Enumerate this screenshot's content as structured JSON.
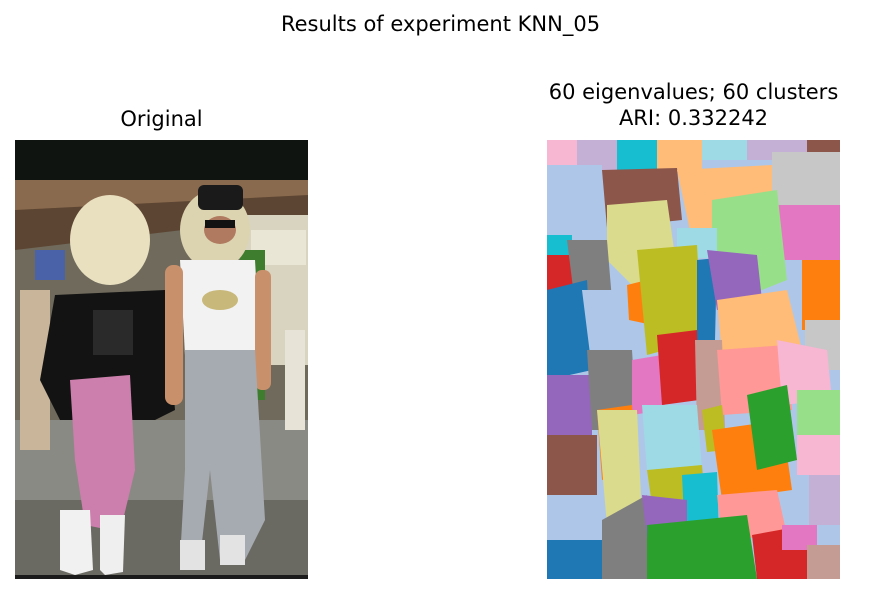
{
  "figure": {
    "suptitle": "Results of experiment KNN_05",
    "left_title": "Original",
    "right_title_line1": "60 eigenvalues; 60 clusters",
    "right_title_line2": "ARI: 0.332242"
  },
  "segmentation": {
    "eigenvalues": 60,
    "clusters": 60,
    "ari": 0.332242,
    "palette": [
      "#1f77b4",
      "#aec7e8",
      "#ff7f0e",
      "#ffbb78",
      "#2ca02c",
      "#98df8a",
      "#d62728",
      "#ff9896",
      "#9467bd",
      "#c5b0d5",
      "#8c564b",
      "#c49c94",
      "#e377c2",
      "#f7b6d2",
      "#7f7f7f",
      "#c7c7c7",
      "#bcbd22",
      "#dbdb8d",
      "#17becf",
      "#9edae5"
    ]
  }
}
